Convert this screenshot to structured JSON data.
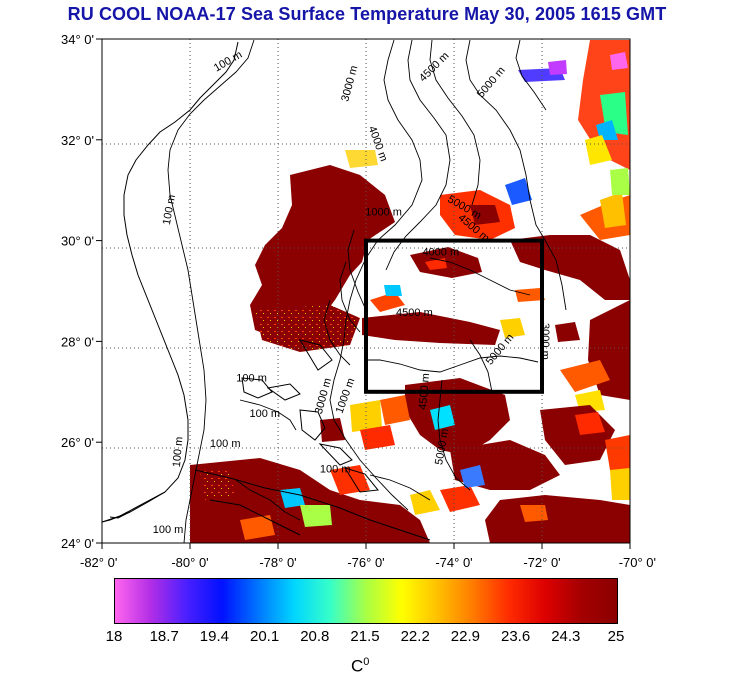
{
  "title": "RU COOL  NOAA-17 Sea Surface Temperature May 30, 2005 1615 GMT",
  "map": {
    "lon_range": [
      -82,
      -70
    ],
    "lat_range": [
      24,
      34
    ],
    "lat_ticks": [
      {
        "value": 34,
        "label": "34° 0'"
      },
      {
        "value": 32,
        "label": "32° 0'"
      },
      {
        "value": 30,
        "label": "30° 0'"
      },
      {
        "value": 28,
        "label": "28° 0'"
      },
      {
        "value": 26,
        "label": "26° 0'"
      },
      {
        "value": 24,
        "label": "24° 0'"
      }
    ],
    "lon_ticks": [
      {
        "value": -82,
        "label": "-82° 0'"
      },
      {
        "value": -80,
        "label": "-80° 0'"
      },
      {
        "value": -78,
        "label": "-78° 0'"
      },
      {
        "value": -76,
        "label": "-76° 0'"
      },
      {
        "value": -74,
        "label": "-74° 0'"
      },
      {
        "value": -72,
        "label": "-72° 0'"
      },
      {
        "value": -70,
        "label": "-70° 0'"
      }
    ],
    "box": {
      "lon_min": -76,
      "lon_max": -72,
      "lat_min": 27,
      "lat_max": 30
    },
    "contour_labels": [
      {
        "text": "100 m",
        "lon": -79.1,
        "lat": 33.5,
        "rot": -30
      },
      {
        "text": "3000 m",
        "lon": -76.3,
        "lat": 33.1,
        "rot": -75
      },
      {
        "text": "4500 m",
        "lon": -74.4,
        "lat": 33.4,
        "rot": -45
      },
      {
        "text": "5000 m",
        "lon": -73.1,
        "lat": 33.1,
        "rot": -50
      },
      {
        "text": "4000 m",
        "lon": -75.8,
        "lat": 31.9,
        "rot": 70
      },
      {
        "text": "100 m",
        "lon": -80.4,
        "lat": 30.6,
        "rot": -80
      },
      {
        "text": "1000 m",
        "lon": -75.6,
        "lat": 30.5,
        "rot": 0
      },
      {
        "text": "5000 m",
        "lon": -73.8,
        "lat": 30.6,
        "rot": 30
      },
      {
        "text": "4500 m",
        "lon": -73.6,
        "lat": 30.2,
        "rot": 40
      },
      {
        "text": "4000 m",
        "lon": -74.3,
        "lat": 29.7,
        "rot": 0
      },
      {
        "text": "4500 m",
        "lon": -74.9,
        "lat": 28.5,
        "rot": 0
      },
      {
        "text": "5000 m",
        "lon": -72.9,
        "lat": 27.8,
        "rot": -50
      },
      {
        "text": "3000 m",
        "lon": -72.0,
        "lat": 28.0,
        "rot": 90
      },
      {
        "text": "100 m",
        "lon": -78.6,
        "lat": 27.2,
        "rot": 0
      },
      {
        "text": "100 m",
        "lon": -78.3,
        "lat": 26.5,
        "rot": 0
      },
      {
        "text": "100 m",
        "lon": -79.2,
        "lat": 25.9,
        "rot": 0
      },
      {
        "text": "100 m",
        "lon": -80.2,
        "lat": 25.8,
        "rot": -85
      },
      {
        "text": "3000 m",
        "lon": -76.9,
        "lat": 26.9,
        "rot": -75
      },
      {
        "text": "4500 m",
        "lon": -74.6,
        "lat": 27.0,
        "rot": -85
      },
      {
        "text": "5000 m",
        "lon": -74.2,
        "lat": 25.9,
        "rot": -80
      },
      {
        "text": "1000 m",
        "lon": -76.4,
        "lat": 26.9,
        "rot": -70
      },
      {
        "text": "100 m",
        "lon": -76.7,
        "lat": 25.4,
        "rot": 0
      },
      {
        "text": "100 m",
        "lon": -80.5,
        "lat": 24.2,
        "rot": 0
      }
    ]
  },
  "colorbar": {
    "unit": "C",
    "unit_sup": "0",
    "tick_labels": [
      "18",
      "18.7",
      "19.4",
      "20.1",
      "20.8",
      "21.5",
      "22.2",
      "22.9",
      "23.6",
      "24.3",
      "25"
    ],
    "colors": [
      "#ff66ee",
      "#b22ee6",
      "#4a1fff",
      "#0011ff",
      "#0077ff",
      "#00d6ff",
      "#37ffc8",
      "#a8ff45",
      "#ffff00",
      "#ffc000",
      "#ff7a00",
      "#ff2a00",
      "#dd0000",
      "#a40000",
      "#8b0000"
    ]
  }
}
